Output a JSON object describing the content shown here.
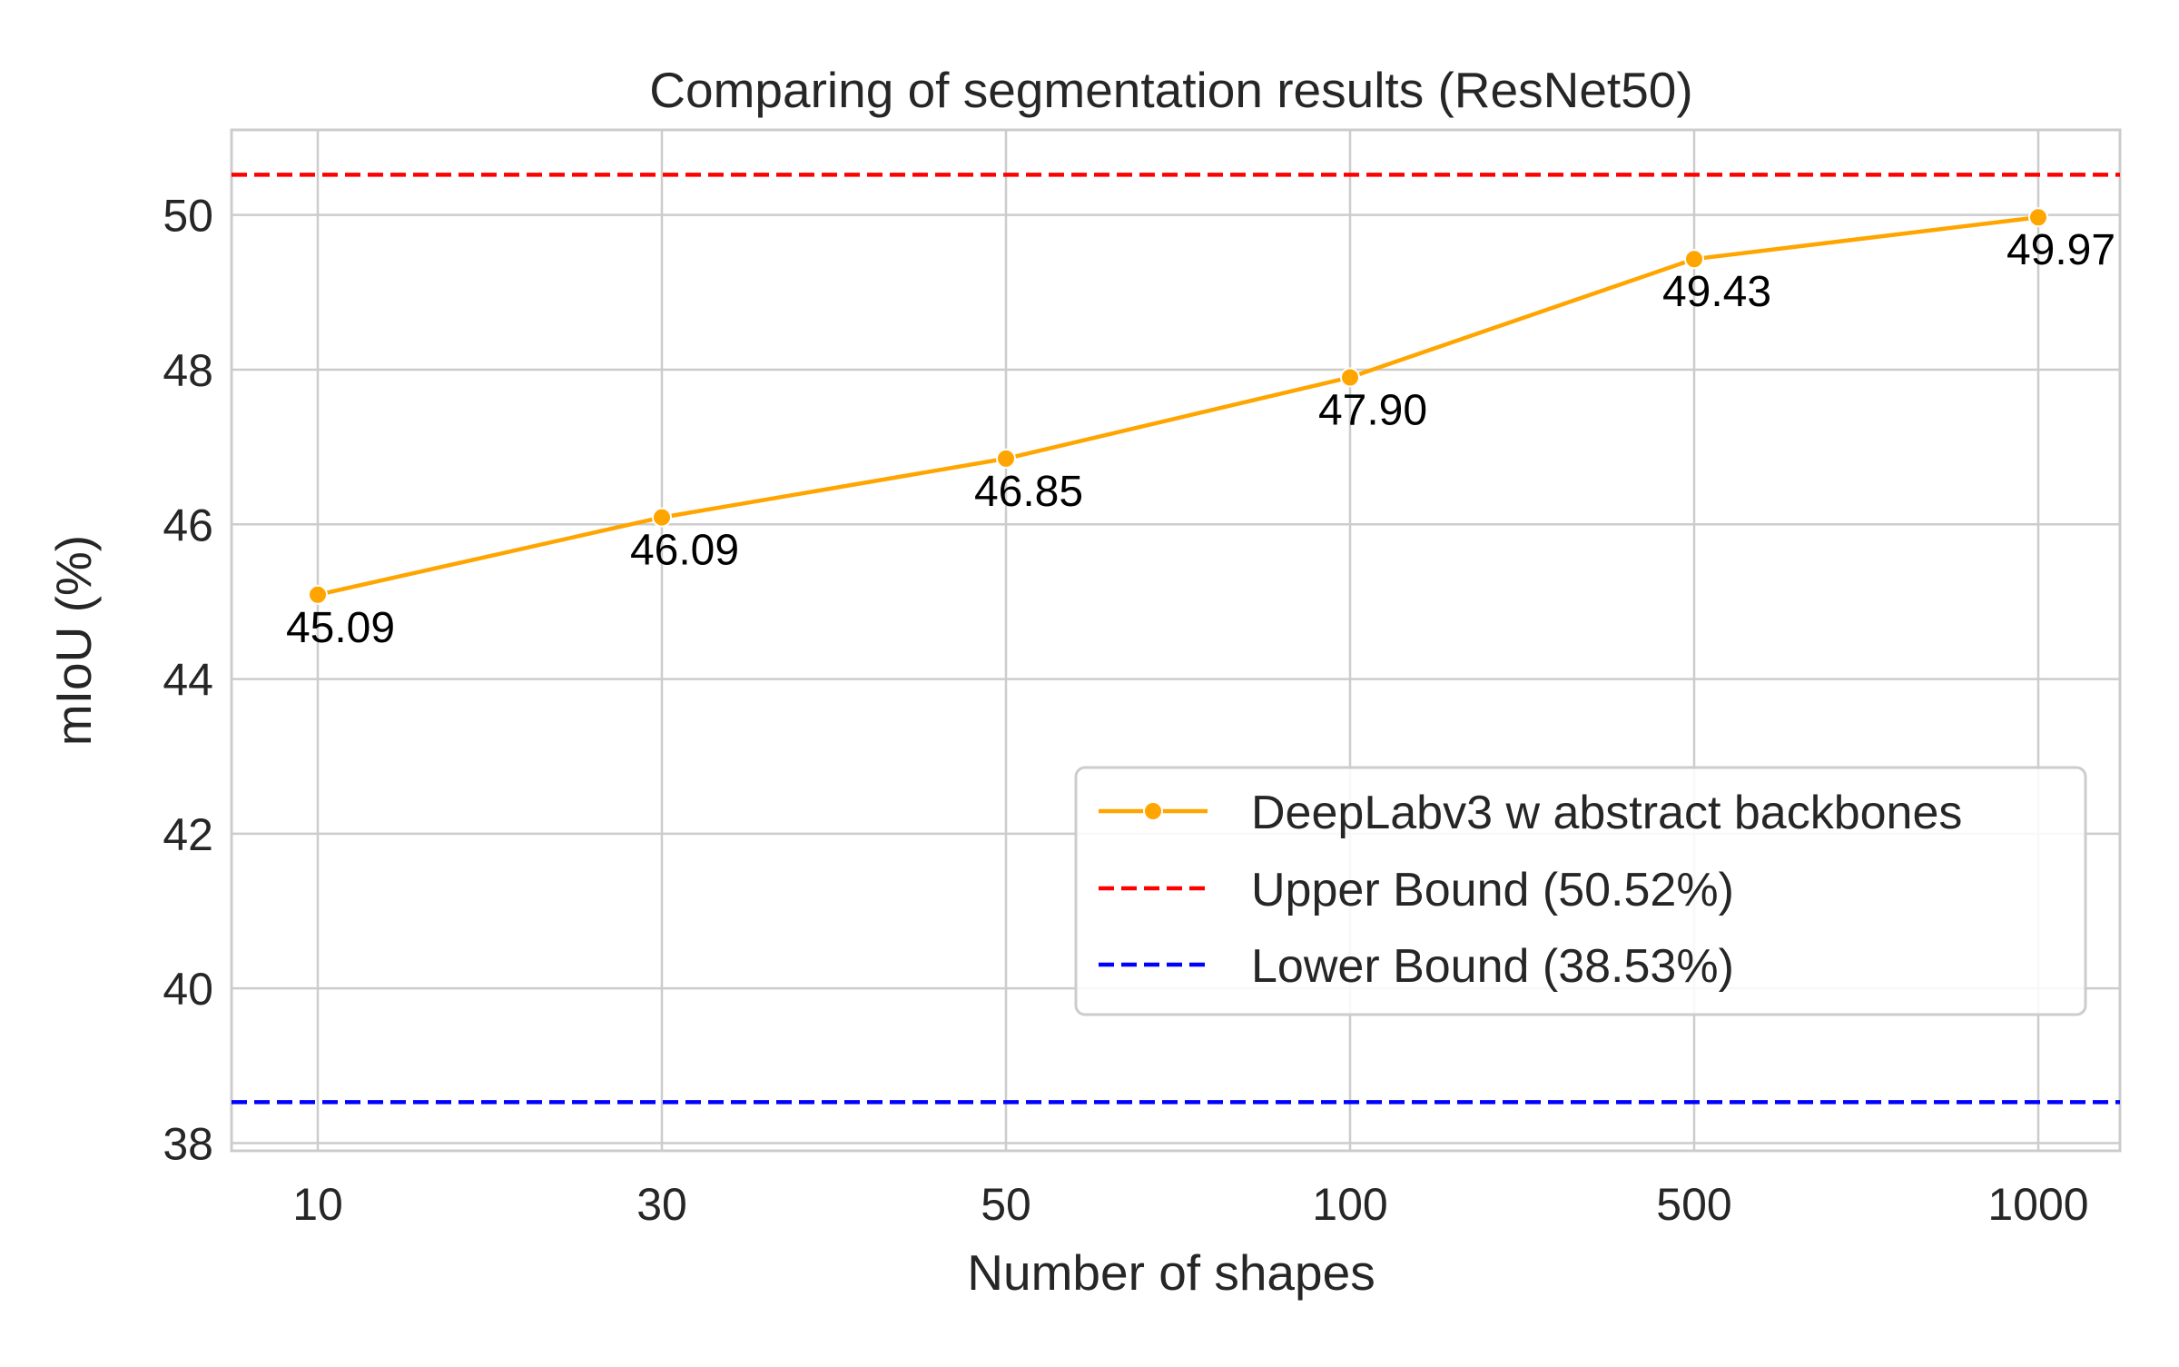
{
  "chart_data": {
    "type": "line",
    "title": "Comparing of segmentation results (ResNet50)",
    "xlabel": "Number of shapes",
    "ylabel": "mIoU (%)",
    "x_scale": "categorical",
    "categories": [
      "10",
      "30",
      "50",
      "100",
      "500",
      "1000"
    ],
    "ylim": [
      37.9,
      51.1
    ],
    "yticks": [
      38,
      40,
      42,
      44,
      46,
      48,
      50
    ],
    "grid": true,
    "legend_position": "center-right",
    "series": [
      {
        "name": "DeepLabv3 w abstract backbones",
        "values": [
          45.09,
          46.09,
          46.85,
          47.9,
          49.43,
          49.97
        ],
        "data_labels": [
          "45.09",
          "46.09",
          "46.85",
          "47.90",
          "49.43",
          "49.97"
        ],
        "color": "#FFA500",
        "style": "solid",
        "marker": "circle"
      }
    ],
    "reference_lines": [
      {
        "name": "Upper Bound (50.52%)",
        "value": 50.52,
        "color": "#FF0000",
        "style": "dashed"
      },
      {
        "name": "Lower Bound (38.53%)",
        "value": 38.53,
        "color": "#0000FF",
        "style": "dashed"
      }
    ]
  }
}
